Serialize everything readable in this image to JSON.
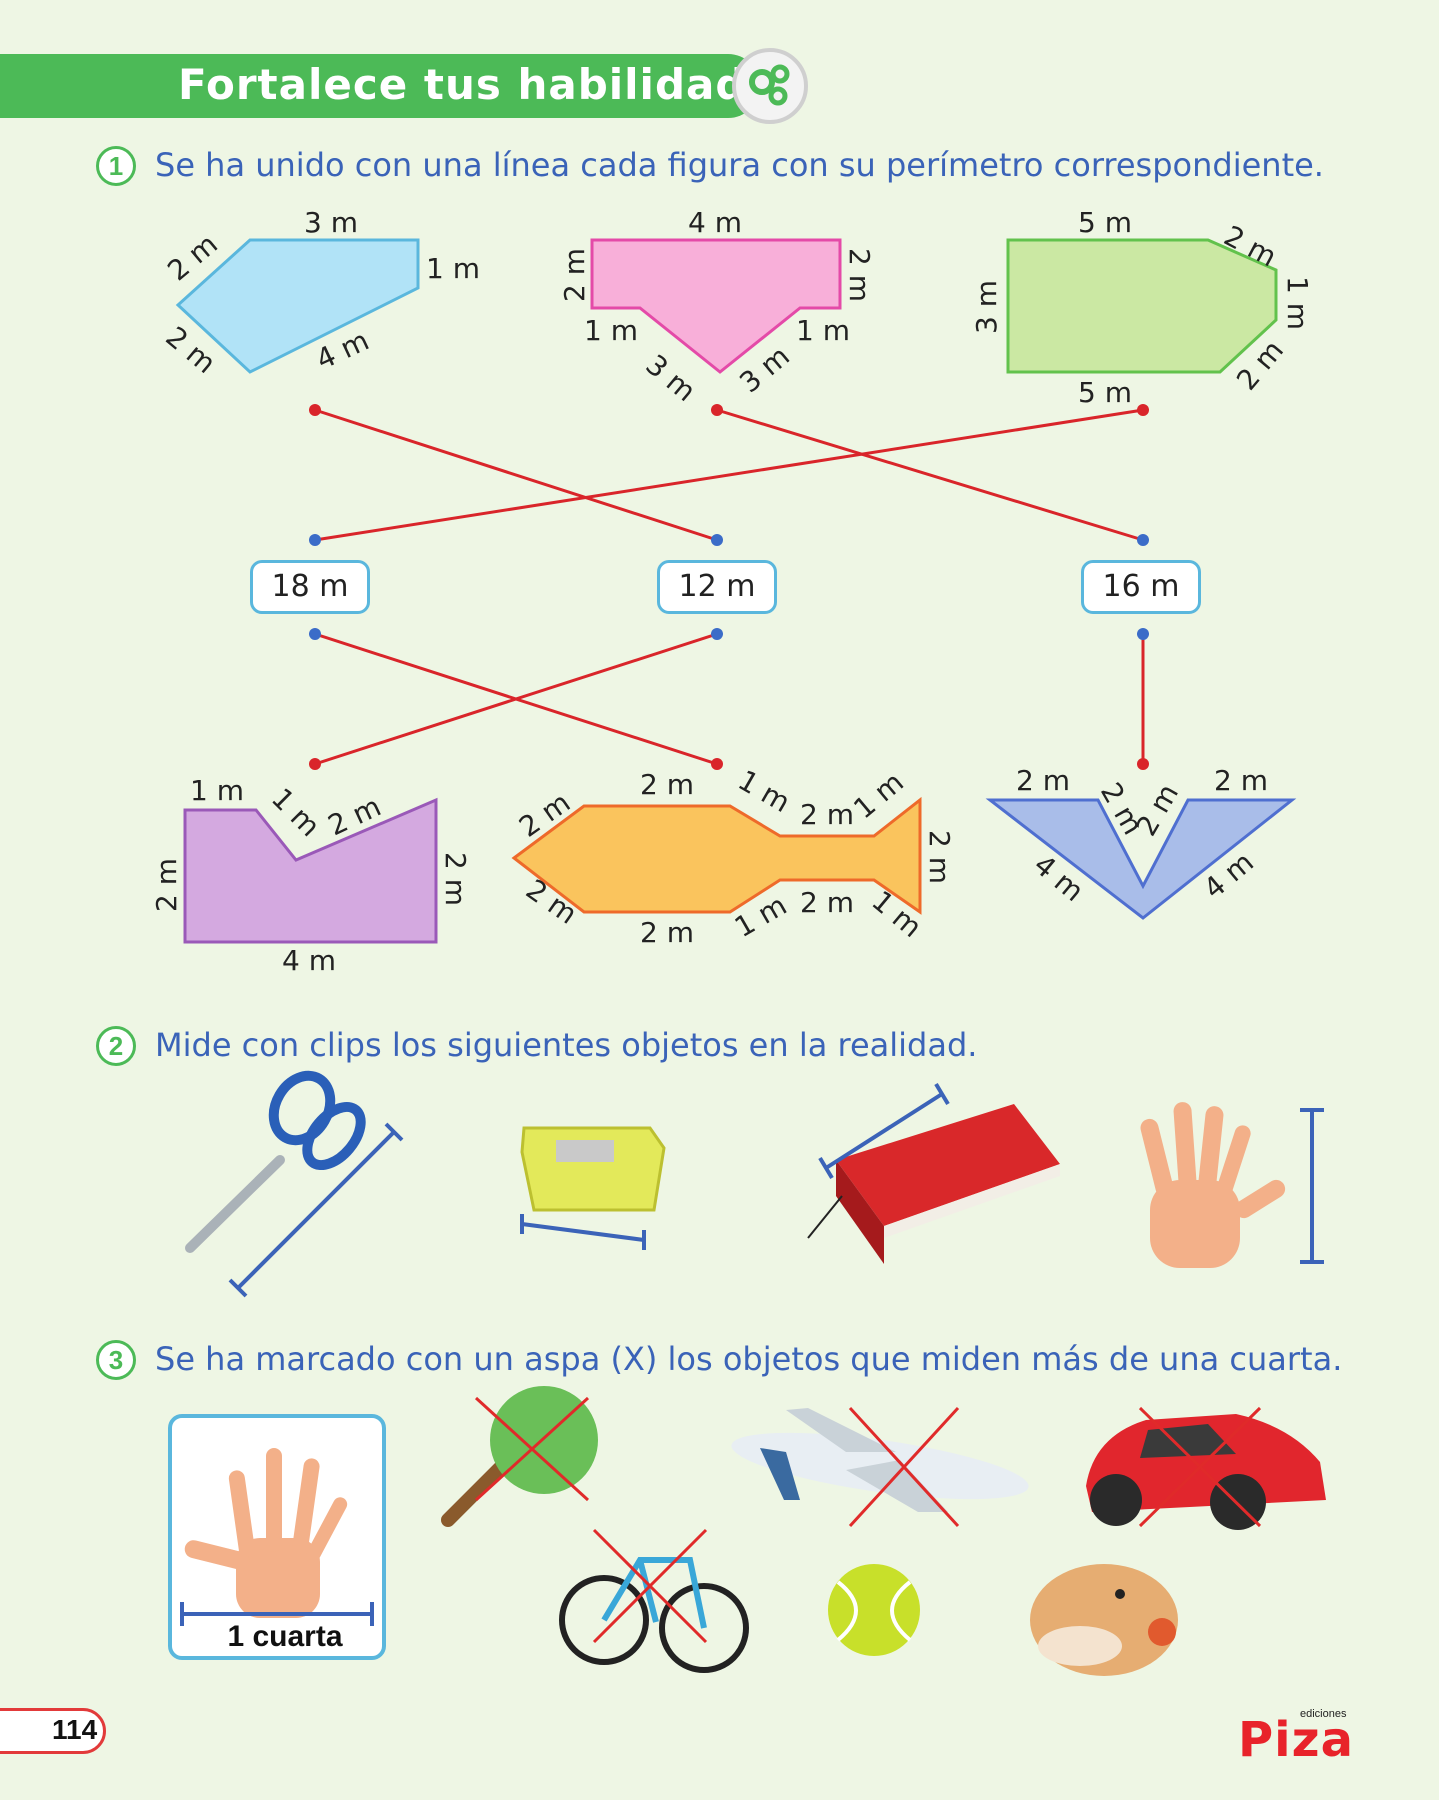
{
  "header": {
    "title": "Fortalece tus habilidades",
    "icon": "gears-icon"
  },
  "page_number": "114",
  "logo": {
    "small": "ediciones",
    "brand": "Piza"
  },
  "q1": {
    "number": "1",
    "text": "Se ha unido con una línea cada figura con su perímetro correspondiente.",
    "values": [
      "18 m",
      "12 m",
      "16 m"
    ],
    "shape_a": {
      "top": "3 m",
      "left_top": "2 m",
      "right": "1 m",
      "left_bottom": "2 m",
      "bottom": "4 m"
    },
    "shape_b": {
      "top": "4 m",
      "left": "2 m",
      "right": "2 m",
      "step_left": "1 m",
      "step_right": "1 m",
      "v_left": "3 m",
      "v_right": "3 m"
    },
    "shape_c": {
      "top": "5 m",
      "top_diag": "2 m",
      "right": "1 m",
      "left": "3 m",
      "bottom": "5 m",
      "bottom_diag": "2 m"
    },
    "shape_d": {
      "top": "1 m",
      "notch_left": "1 m",
      "slope": "2 m",
      "left": "2 m",
      "right": "2 m",
      "bottom": "4 m"
    },
    "shape_e": {
      "top": "2 m",
      "upper_left": "2 m",
      "upper_neck": "1 m",
      "upper_tail": "2 m",
      "upper_tail_end": "1 m",
      "tail_height": "2 m",
      "lower_left": "2 m",
      "bottom": "2 m",
      "lower_neck": "1 m",
      "lower_tail": "2 m",
      "lower_tail_end": "1 m"
    },
    "shape_f": {
      "top_left": "2 m",
      "top_right": "2 m",
      "inner_left": "2 m",
      "inner_right": "2 m",
      "outer_left": "4 m",
      "outer_right": "4 m"
    }
  },
  "q2": {
    "number": "2",
    "text": "Mide con clips los siguientes objetos en la realidad.",
    "objects": [
      "scissors-icon",
      "sharpener-icon",
      "book-icon",
      "hand-icon"
    ]
  },
  "q3": {
    "number": "3",
    "text": "Se ha marcado con un aspa (X) los objetos que miden más de una cuarta.",
    "unit_label": "1 cuarta",
    "objects": [
      "paddle-icon",
      "airplane-icon",
      "car-icon",
      "bicycle-icon",
      "tennis-ball-icon",
      "hamster-icon"
    ]
  },
  "colors": {
    "green": "#4cba57",
    "blue_text": "#3a63b8",
    "red_line": "#d9252a",
    "blue_dot": "#3b6cc8"
  }
}
